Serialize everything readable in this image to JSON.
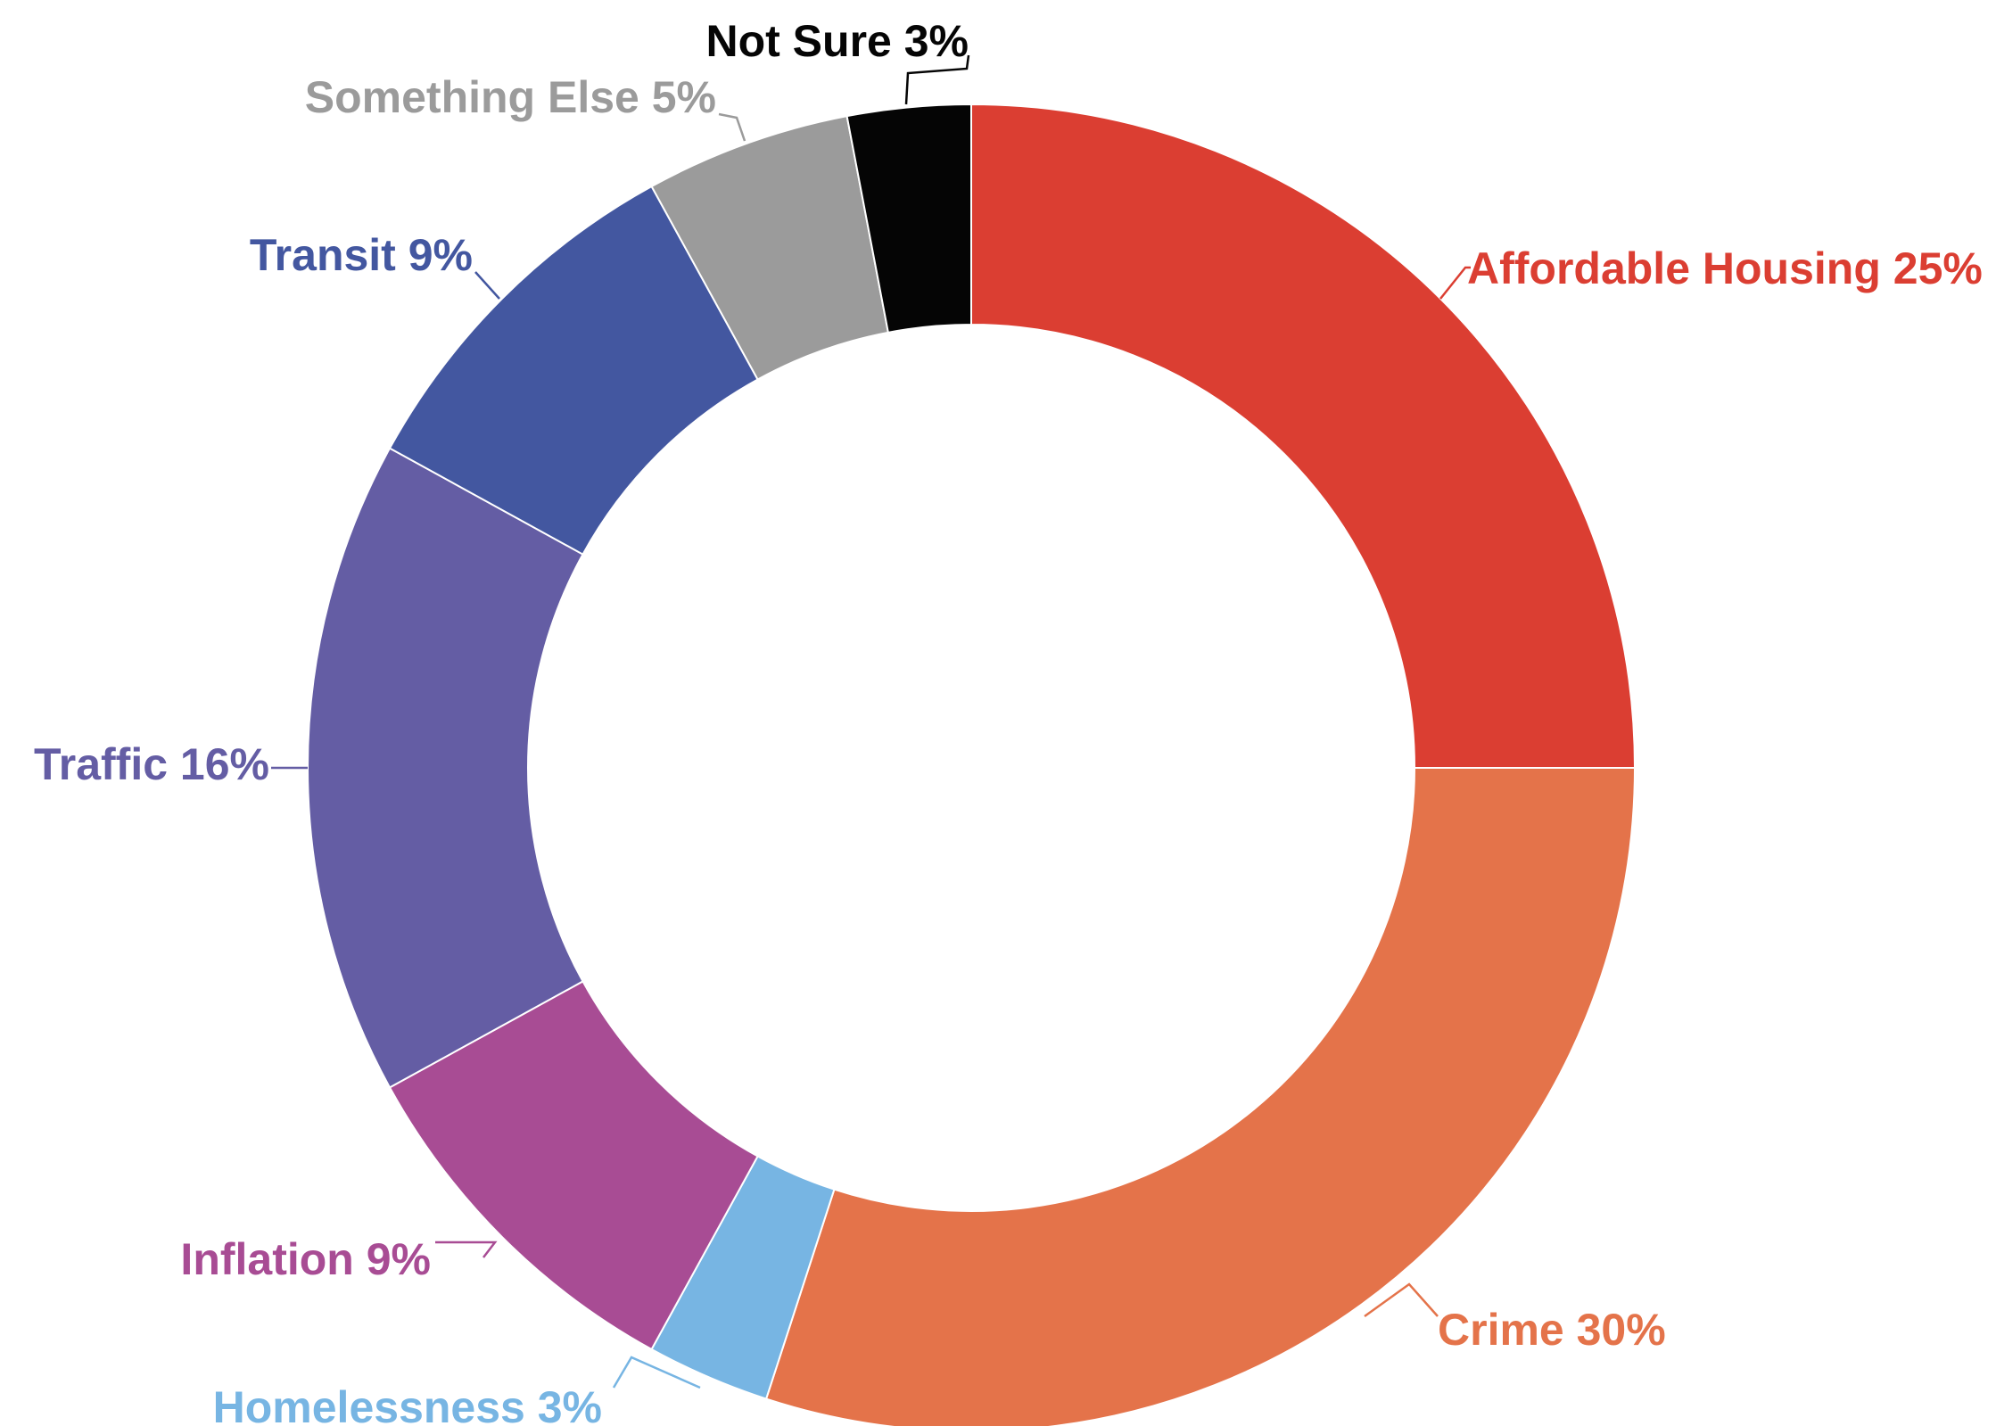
{
  "chart_data": {
    "type": "pie",
    "style": "donut",
    "start_angle_deg": 0,
    "direction": "clockwise-from-top",
    "slices": [
      {
        "name": "Affordable Housing",
        "value": 25,
        "label": "Affordable Housing 25%",
        "color": "#db3e32"
      },
      {
        "name": "Crime",
        "value": 30,
        "label": "Crime 30%",
        "color": "#e4734a"
      },
      {
        "name": "Homelessness",
        "value": 3,
        "label": "Homelessness 3%",
        "color": "#77b5e3"
      },
      {
        "name": "Inflation",
        "value": 9,
        "label": "Inflation 9%",
        "color": "#a84c94"
      },
      {
        "name": "Traffic",
        "value": 16,
        "label": "Traffic 16%",
        "color": "#645da4"
      },
      {
        "name": "Transit",
        "value": 9,
        "label": "Transit 9%",
        "color": "#4357a0"
      },
      {
        "name": "Something Else",
        "value": 5,
        "label": "Something Else 5%",
        "color": "#9b9b9b"
      },
      {
        "name": "Not Sure",
        "value": 3,
        "label": "Not Sure 3%",
        "color": "#050505"
      }
    ],
    "title": "",
    "legend": "none"
  }
}
